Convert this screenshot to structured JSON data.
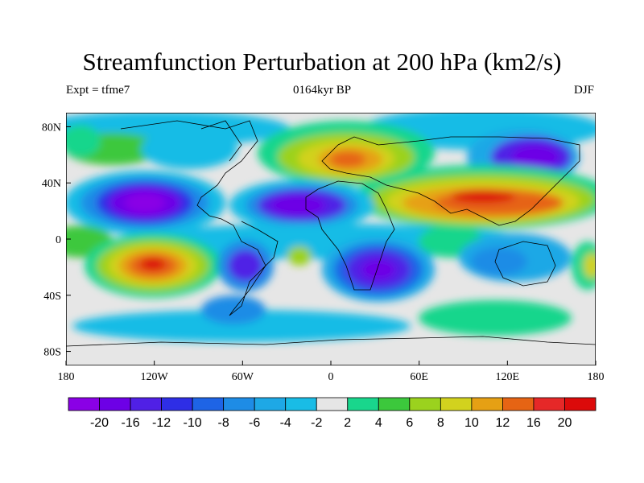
{
  "title": "Streamfunction Perturbation at 200 hPa (km2/s)",
  "subtitle_left": "Expt = tfme7",
  "subtitle_center": "0164kyr BP",
  "subtitle_right": "DJF",
  "axes": {
    "lon_ticks": [
      "180",
      "120W",
      "60W",
      "0",
      "60E",
      "120E",
      "180"
    ],
    "lat_ticks": [
      "80N",
      "40N",
      "0",
      "40S",
      "80S"
    ]
  },
  "colorbar": {
    "labels": [
      "-20",
      "-16",
      "-12",
      "-10",
      "-8",
      "-6",
      "-4",
      "-2",
      "2",
      "4",
      "6",
      "8",
      "10",
      "12",
      "16",
      "20"
    ],
    "colors": [
      "#8a00e6",
      "#6d00e6",
      "#5020e6",
      "#2e2ee6",
      "#1e64e6",
      "#1e8ce6",
      "#1ea8e6",
      "#19bce6",
      "#e6e6e6",
      "#19d68c",
      "#3cc83c",
      "#9bd21e",
      "#d2d21e",
      "#e6a014",
      "#e66414",
      "#e62828",
      "#dc0a0a"
    ]
  }
}
